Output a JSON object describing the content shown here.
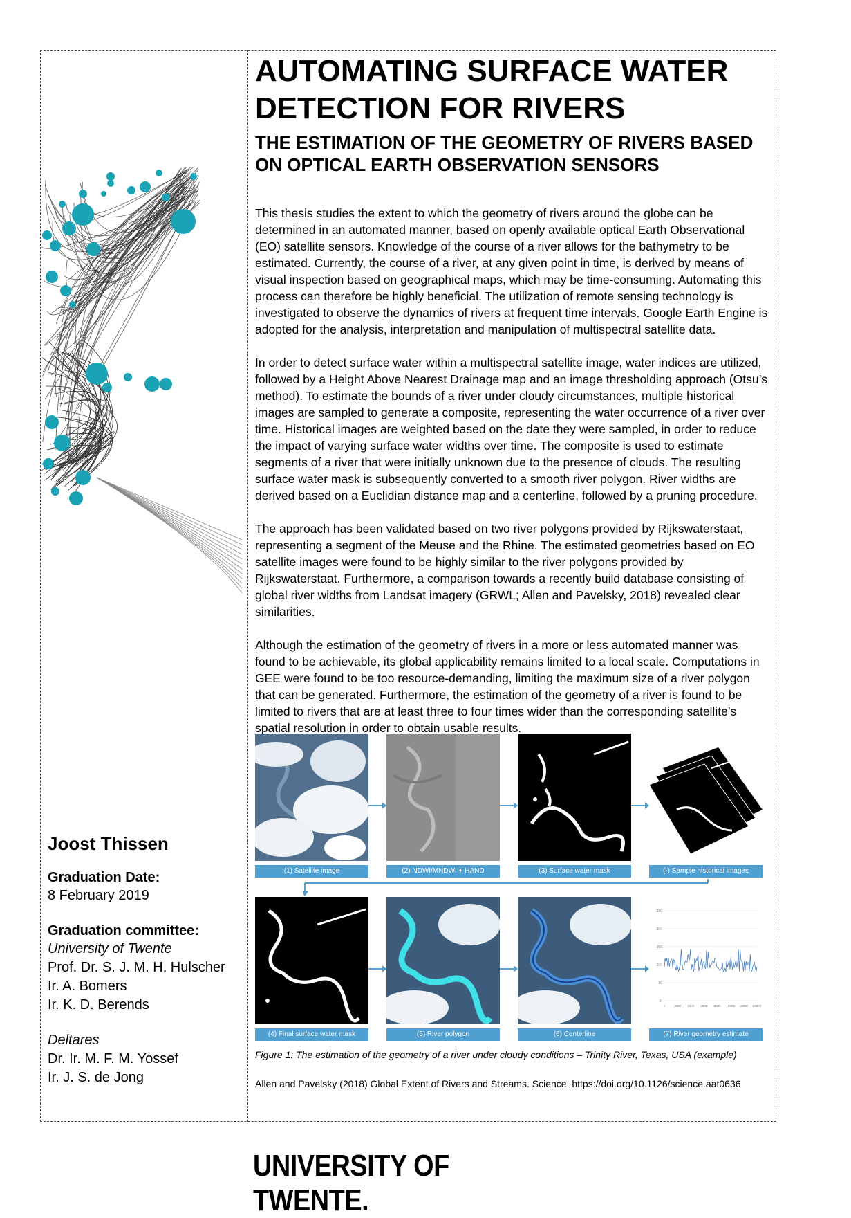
{
  "title": "AUTOMATING SURFACE WATER DETECTION FOR RIVERS",
  "subtitle": "THE ESTIMATION OF THE GEOMETRY OF RIVERS BASED ON OPTICAL EARTH OBSERVATION SENSORS",
  "abstract": [
    "This thesis studies the extent to which the geometry of rivers around the globe can be determined in an automated manner, based on openly available optical Earth Observational (EO) satellite sensors. Knowledge of the course of a river allows for the bathymetry to be estimated. Currently, the course of a river, at any given point in time, is derived by means of visual inspection based on geographical maps, which may be time-consuming. Automating this process can therefore be highly beneficial. The utilization of remote sensing technology is investigated to observe the dynamics of rivers at frequent time intervals. Google Earth Engine is adopted for the analysis, interpretation and manipulation of multispectral satellite data.",
    "In order to detect surface water within a multispectral satellite image, water indices are utilized, followed by a Height Above Nearest Drainage map and an image thresholding approach (Otsu’s method). To estimate the bounds of a river under cloudy circumstances, multiple historical images are sampled to generate a composite, representing the water occurrence of a river over time. Historical images are weighted based on the date they were sampled, in order to reduce the impact of varying surface water widths over time. The composite is used to estimate segments of a river that were initially unknown due to the presence of clouds. The resulting surface water mask is subsequently converted to a smooth river polygon. River widths are derived based on a Euclidian distance map and a centerline, followed by a pruning procedure.",
    "The approach has been validated based on two river polygons provided by Rijkswaterstaat, representing a segment of the Meuse and the Rhine. The estimated geometries based on EO satellite images were found to be highly similar to the river polygons provided by Rijkswaterstaat. Furthermore, a comparison towards a recently build database consisting of global river widths from Landsat imagery (GRWL; Allen and Pavelsky, 2018) revealed clear similarities.",
    "Although the estimation of the geometry of rivers in a more or less automated manner was found to be achievable, its global applicability remains limited to a local scale. Computations in GEE were found to be too resource-demanding, limiting the maximum size of a river polygon that can be generated.  Furthermore, the estimation of the geometry of a river is found to be limited to rivers that are at least three to four times wider than the corresponding satellite’s spatial resolution in order to obtain usable results."
  ],
  "figure": {
    "panels": [
      "(1) Satellite image",
      "(2) NDWI/MNDWI + HAND",
      "(3) Surface water mask",
      "(-) Sample historical images",
      "(4) Final surface water mask",
      "(5) River polygon",
      "(6) Centerline",
      "(7) River geometry estimate"
    ],
    "plot_yticks": [
      "250",
      "200",
      "150",
      "100",
      "50",
      "0"
    ],
    "plot_xticks": [
      "0",
      "2000",
      "4000",
      "6000",
      "8000",
      "10000",
      "12000",
      "14000"
    ],
    "caption": "Figure 1:  The estimation of the geometry of a river under cloudy conditions – Trinity River, Texas, USA (example)"
  },
  "reference": "Allen and Pavelsky (2018) Global Extent of Rivers and Streams. Science. https://doi.org/10.1126/science.aat0636",
  "author": {
    "name": "Joost Thissen",
    "date_label": "Graduation Date:",
    "date": "8 February 2019",
    "committee_label": "Graduation committee:",
    "org1": "University of Twente",
    "org1_members": [
      "Prof. Dr. S. J. M. H. Hulscher",
      "Ir. A. Bomers",
      "Ir. K. D. Berends"
    ],
    "org2": "Deltares",
    "org2_members": [
      "Dr. Ir. M. F. M. Yossef",
      "Ir. J. S. de Jong"
    ]
  },
  "logo": "UNIVERSITY OF TWENTE.",
  "colors": {
    "accent": "#4f9fd0",
    "dots": "#1aa3b5",
    "line": "#333333"
  }
}
